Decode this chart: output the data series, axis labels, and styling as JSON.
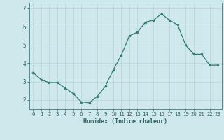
{
  "x": [
    0,
    1,
    2,
    3,
    4,
    5,
    6,
    7,
    8,
    9,
    10,
    11,
    12,
    13,
    14,
    15,
    16,
    17,
    18,
    19,
    20,
    21,
    22,
    23
  ],
  "y": [
    3.5,
    3.1,
    2.95,
    2.95,
    2.65,
    2.35,
    1.9,
    1.85,
    2.2,
    2.75,
    3.65,
    4.45,
    5.5,
    5.7,
    6.25,
    6.35,
    6.7,
    6.35,
    6.1,
    5.0,
    4.5,
    4.5,
    3.9,
    3.9
  ],
  "xlabel": "Humidex (Indice chaleur)",
  "ylim": [
    1.5,
    7.3
  ],
  "xlim": [
    -0.5,
    23.5
  ],
  "line_color": "#2d7d6e",
  "marker_color": "#2d7d6e",
  "bg_color": "#cfe8ec",
  "grid_color": "#b8d5da",
  "tick_label_color": "#2d6060",
  "axis_color": "#5a8a8a",
  "yticks": [
    2,
    3,
    4,
    5,
    6,
    7
  ]
}
